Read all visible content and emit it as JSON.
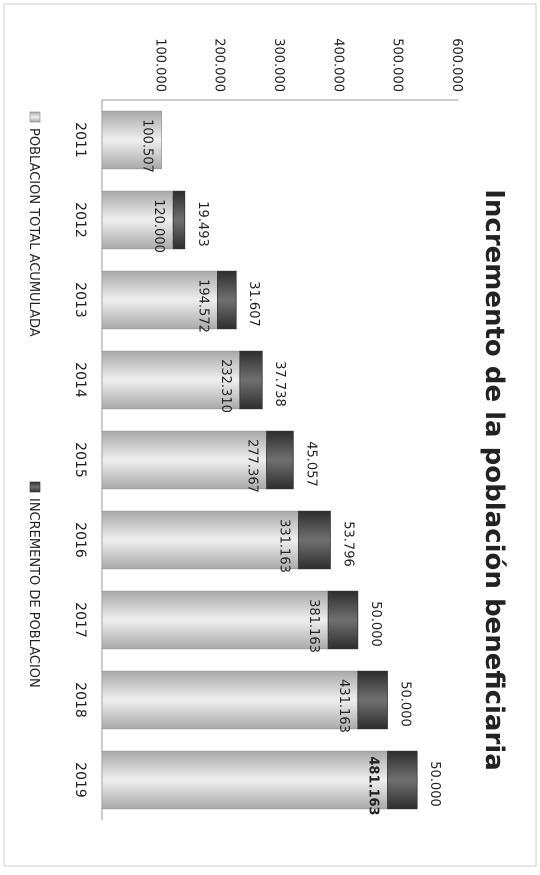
{
  "chart_data": {
    "type": "bar",
    "stacked": true,
    "orientation": "horizontal",
    "title": "Incremento de la población beneficiaria",
    "categories": [
      "2011",
      "2012",
      "2013",
      "2014",
      "2015",
      "2016",
      "2017",
      "2018",
      "2019"
    ],
    "series": [
      {
        "name": "POBLACION TOTAL ACUMULADA",
        "color": "#c8c8c8",
        "values": [
          100507,
          120000,
          194572,
          232310,
          277367,
          331163,
          381163,
          431163,
          481163
        ],
        "labels": [
          "100.507",
          "120.000",
          "194.572",
          "232.310",
          "277.367",
          "331.163",
          "381.163",
          "431.163",
          "481.163"
        ]
      },
      {
        "name": "INCREMENTO DE POBLACION",
        "color": "#4a4a4a",
        "values": [
          null,
          19493,
          31607,
          37738,
          45057,
          53796,
          50000,
          50000,
          50000
        ],
        "labels": [
          "",
          "19.493",
          "31.607",
          "37.738",
          "45.057",
          "53.796",
          "50.000",
          "50.000",
          "50.000"
        ]
      }
    ],
    "value_axis": {
      "min": 0,
      "max": 600000,
      "ticks": [
        100000,
        200000,
        300000,
        400000,
        500000,
        600000
      ],
      "tick_labels": [
        "100.000",
        "200.000",
        "300.000",
        "400.000",
        "500.000",
        "600.000"
      ]
    },
    "grid": false,
    "legend_position": "bottom"
  }
}
